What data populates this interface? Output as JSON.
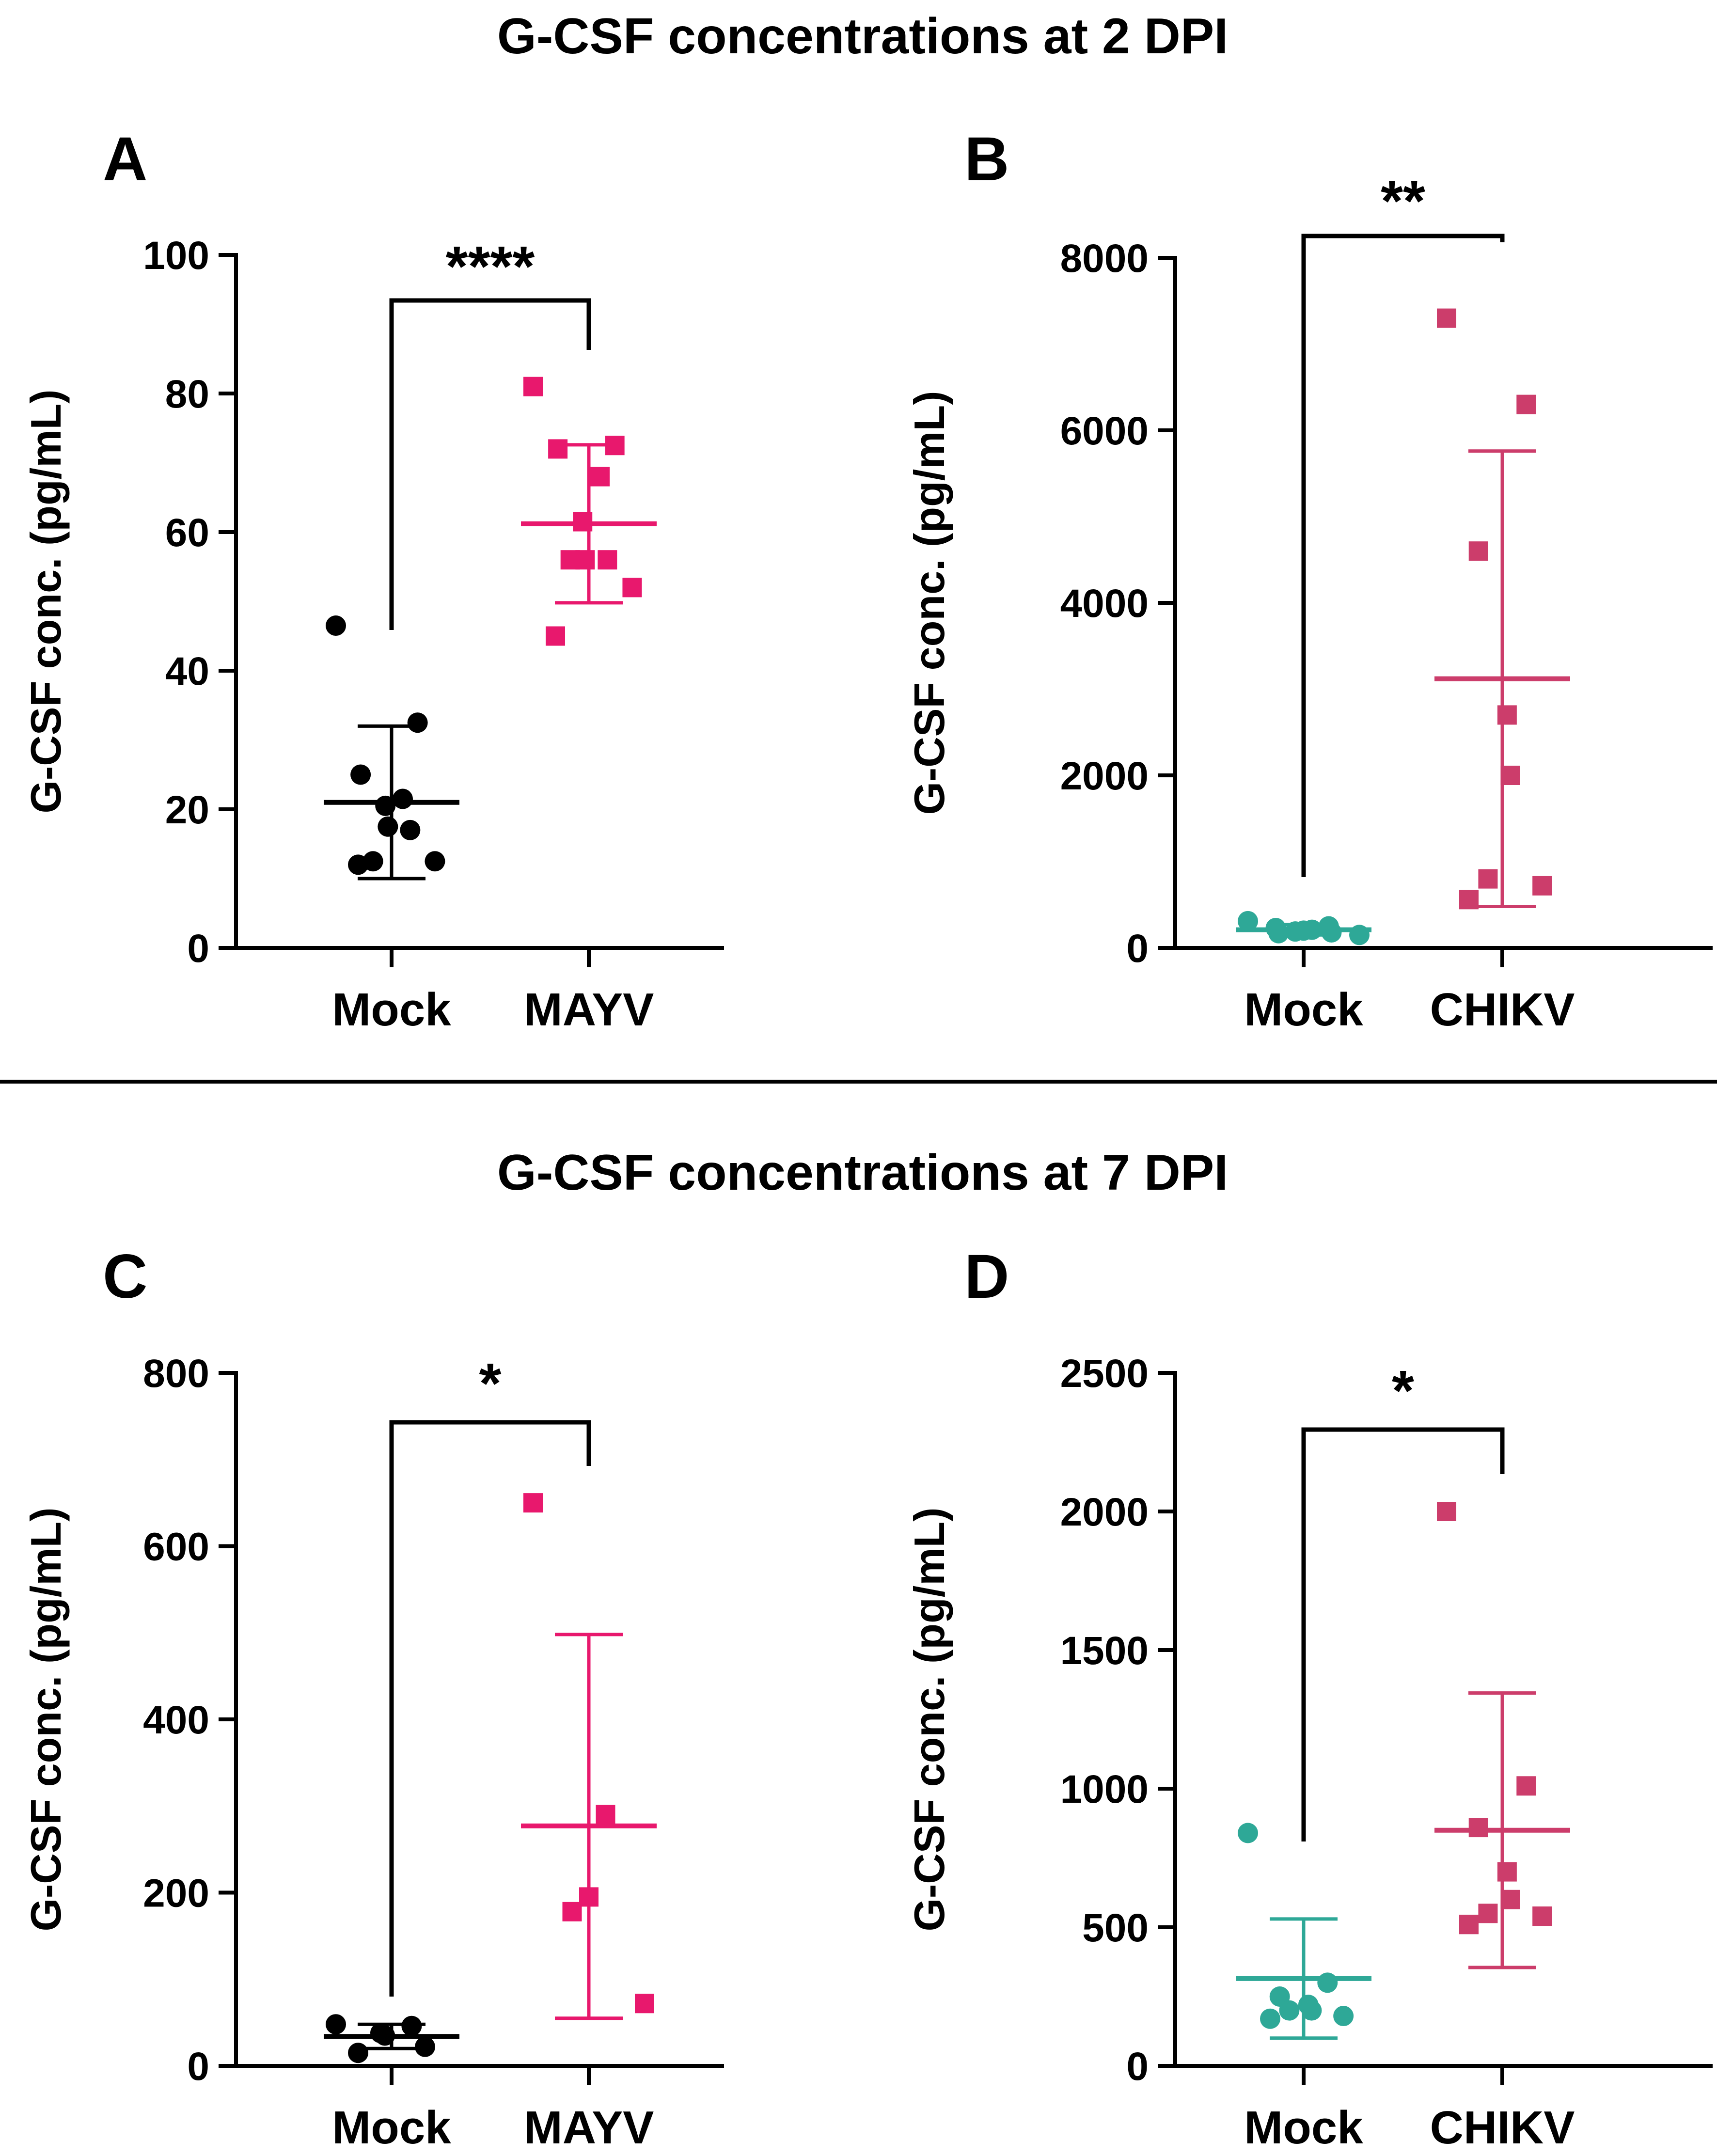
{
  "titles": {
    "top": "G-CSF concentrations at 2 DPI",
    "bottom": "G-CSF concentrations at 7 DPI"
  },
  "colors": {
    "black": "#000000",
    "mayv": "#e8186d",
    "chikv": "#cc3d6b",
    "mock_teal": "#2ea897"
  },
  "chart_data": [
    {
      "panel": "A",
      "type": "scatter",
      "ylabel": "G-CSF conc. (pg/mL)",
      "ylim": [
        0,
        100
      ],
      "yticks": [
        0,
        20,
        40,
        60,
        80,
        100
      ],
      "yticklabels": [
        "0",
        "20",
        "40",
        "60",
        "80",
        "100"
      ],
      "categories": [
        "Mock",
        "MAYV"
      ],
      "significance": "****",
      "series": [
        {
          "name": "Mock",
          "marker": "circle",
          "color": "#000000",
          "values": [
            46.5,
            32.5,
            25.0,
            21.5,
            20.5,
            17.5,
            17.0,
            12.5,
            12.5,
            12.0
          ],
          "mean": 21,
          "sd_low": 10,
          "sd_high": 32
        },
        {
          "name": "MAYV",
          "marker": "square",
          "color": "#e8186d",
          "values": [
            81,
            72.5,
            72,
            68,
            61.5,
            56,
            56,
            56,
            52,
            45
          ],
          "mean": 61.2,
          "sd_low": 49.8,
          "sd_high": 72.6
        }
      ]
    },
    {
      "panel": "B",
      "type": "scatter",
      "ylabel": "G-CSF conc. (pg/mL)",
      "ylim": [
        0,
        8000
      ],
      "yticks": [
        0,
        2000,
        4000,
        6000,
        8000
      ],
      "yticklabels": [
        "0",
        "2000",
        "4000",
        "6000",
        "8000"
      ],
      "categories": [
        "Mock",
        "CHIKV"
      ],
      "significance": "**",
      "series": [
        {
          "name": "Mock",
          "marker": "circle",
          "color": "#2ea897",
          "values": [
            310,
            250,
            230,
            210,
            200,
            190,
            180,
            170,
            150
          ],
          "mean": 210,
          "sd_low": 150,
          "sd_high": 270
        },
        {
          "name": "CHIKV",
          "marker": "square",
          "color": "#cc3d6b",
          "values": [
            7300,
            6300,
            4600,
            2700,
            2000,
            800,
            720,
            560
          ],
          "mean": 3120,
          "sd_low": 480,
          "sd_high": 5760
        }
      ]
    },
    {
      "panel": "C",
      "type": "scatter",
      "ylabel": "G-CSF conc. (pg/mL)",
      "ylim": [
        0,
        800
      ],
      "yticks": [
        0,
        200,
        400,
        600,
        800
      ],
      "yticklabels": [
        "0",
        "200",
        "400",
        "600",
        "800"
      ],
      "categories": [
        "Mock",
        "MAYV"
      ],
      "significance": "*",
      "series": [
        {
          "name": "Mock",
          "marker": "circle",
          "color": "#000000",
          "values": [
            48,
            46,
            38,
            35,
            22,
            15
          ],
          "mean": 34,
          "sd_low": 20,
          "sd_high": 48
        },
        {
          "name": "MAYV",
          "marker": "square",
          "color": "#e8186d",
          "values": [
            650,
            290,
            195,
            178,
            72
          ],
          "mean": 277,
          "sd_low": 55,
          "sd_high": 498
        }
      ]
    },
    {
      "panel": "D",
      "type": "scatter",
      "ylabel": "G-CSF conc. (pg/mL)",
      "ylim": [
        0,
        2500
      ],
      "yticks": [
        0,
        500,
        1000,
        1500,
        2000,
        2500
      ],
      "yticklabels": [
        "0",
        "500",
        "1000",
        "1500",
        "2000",
        "2500"
      ],
      "categories": [
        "Mock",
        "CHIKV"
      ],
      "significance": "*",
      "series": [
        {
          "name": "Mock",
          "marker": "circle",
          "color": "#2ea897",
          "values": [
            840,
            300,
            250,
            220,
            200,
            200,
            180,
            170
          ],
          "mean": 315,
          "sd_low": 100,
          "sd_high": 530
        },
        {
          "name": "CHIKV",
          "marker": "square",
          "color": "#cc3d6b",
          "values": [
            2000,
            1010,
            860,
            700,
            600,
            550,
            540,
            510
          ],
          "mean": 850,
          "sd_low": 355,
          "sd_high": 1345
        }
      ]
    }
  ]
}
